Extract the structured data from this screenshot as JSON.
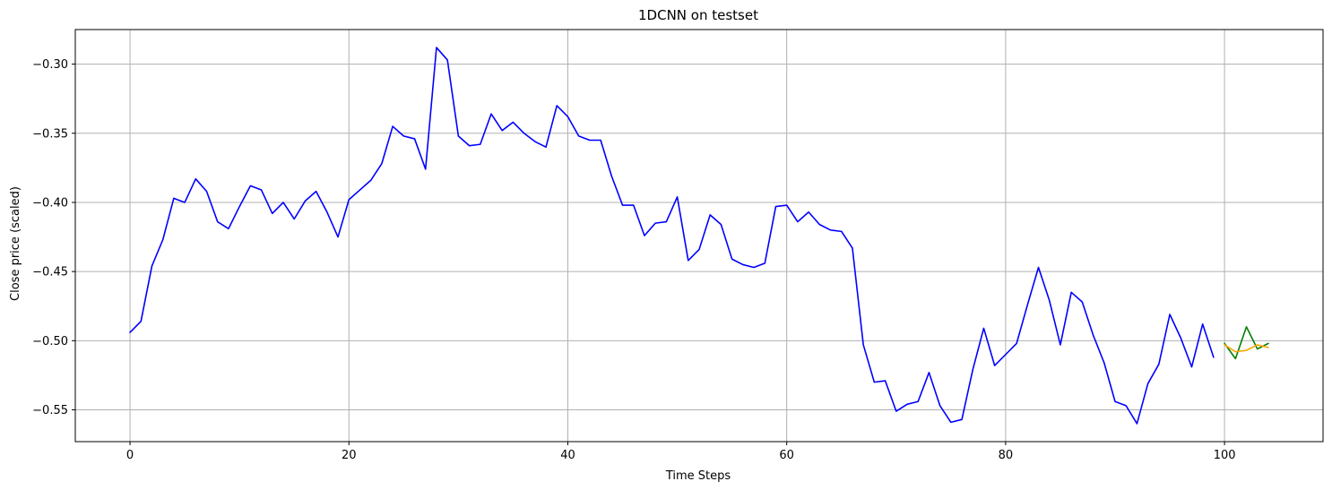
{
  "chart_data": {
    "type": "line",
    "title": "1DCNN on testset",
    "xlabel": "Time Steps",
    "ylabel": "Close price (scaled)",
    "xlim": [
      -5,
      109
    ],
    "ylim": [
      -0.573,
      -0.275
    ],
    "xticks": [
      0,
      20,
      40,
      60,
      80,
      100
    ],
    "yticks": [
      -0.3,
      -0.35,
      -0.4,
      -0.45,
      -0.5,
      -0.55
    ],
    "xtick_labels": [
      "0",
      "20",
      "40",
      "60",
      "80",
      "100"
    ],
    "ytick_labels": [
      "−0.30",
      "−0.35",
      "−0.40",
      "−0.45",
      "−0.50",
      "−0.55"
    ],
    "grid": true,
    "series": [
      {
        "color": "#0000ff",
        "x": [
          0,
          1,
          2,
          3,
          4,
          5,
          6,
          7,
          8,
          9,
          10,
          11,
          12,
          13,
          14,
          15,
          16,
          17,
          18,
          19,
          20,
          21,
          22,
          23,
          24,
          25,
          26,
          27,
          28,
          29,
          30,
          31,
          32,
          33,
          34,
          35,
          36,
          37,
          38,
          39,
          40,
          41,
          42,
          43,
          44,
          45,
          46,
          47,
          48,
          49,
          50,
          51,
          52,
          53,
          54,
          55,
          56,
          57,
          58,
          59,
          60,
          61,
          62,
          63,
          64,
          65,
          66,
          67,
          68,
          69,
          70,
          71,
          72,
          73,
          74,
          75,
          76,
          77,
          78,
          79,
          80,
          81,
          82,
          83,
          84,
          85,
          86,
          87,
          88,
          89,
          90,
          91,
          92,
          93,
          94,
          95,
          96,
          97,
          98,
          99
        ],
        "y": [
          -0.494,
          -0.486,
          -0.446,
          -0.427,
          -0.397,
          -0.4,
          -0.383,
          -0.392,
          -0.414,
          -0.419,
          -0.403,
          -0.388,
          -0.391,
          -0.408,
          -0.4,
          -0.412,
          -0.399,
          -0.392,
          -0.407,
          -0.425,
          -0.398,
          -0.391,
          -0.384,
          -0.372,
          -0.345,
          -0.352,
          -0.354,
          -0.376,
          -0.288,
          -0.297,
          -0.352,
          -0.359,
          -0.358,
          -0.336,
          -0.348,
          -0.342,
          -0.35,
          -0.356,
          -0.36,
          -0.33,
          -0.338,
          -0.352,
          -0.355,
          -0.355,
          -0.381,
          -0.402,
          -0.402,
          -0.424,
          -0.415,
          -0.414,
          -0.396,
          -0.442,
          -0.434,
          -0.409,
          -0.416,
          -0.441,
          -0.445,
          -0.447,
          -0.444,
          -0.403,
          -0.402,
          -0.414,
          -0.407,
          -0.416,
          -0.42,
          -0.421,
          -0.433,
          -0.503,
          -0.53,
          -0.529,
          -0.551,
          -0.546,
          -0.544,
          -0.523,
          -0.547,
          -0.559,
          -0.557,
          -0.521,
          -0.491,
          -0.518,
          -0.51,
          -0.502,
          -0.474,
          -0.447,
          -0.471,
          -0.503,
          -0.465,
          -0.472,
          -0.496,
          -0.516,
          -0.544,
          -0.547,
          -0.56,
          -0.531,
          -0.517,
          -0.481,
          -0.498,
          -0.519,
          -0.488,
          -0.512
        ]
      },
      {
        "color": "#008000",
        "x": [
          100,
          101,
          102,
          103,
          104
        ],
        "y": [
          -0.502,
          -0.513,
          -0.49,
          -0.506,
          -0.502
        ]
      },
      {
        "color": "#ffa500",
        "x": [
          100,
          101,
          102,
          103,
          104
        ],
        "y": [
          -0.503,
          -0.508,
          -0.507,
          -0.503,
          -0.505
        ]
      }
    ]
  }
}
